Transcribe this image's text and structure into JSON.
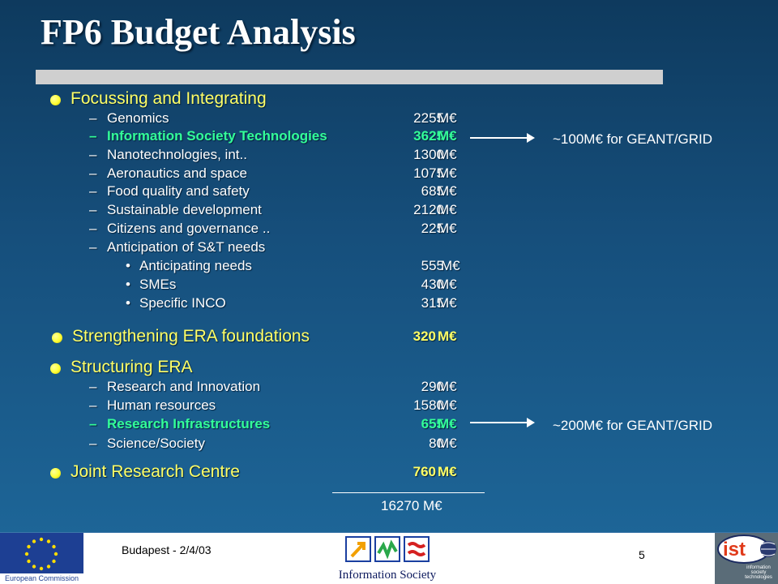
{
  "title": "FP6 Budget Analysis",
  "sections": {
    "focussing": {
      "label": "Focussing and Integrating",
      "items": [
        {
          "label": "Genomics",
          "value": "2255",
          "unit": "M€"
        },
        {
          "label": "Information Society Technologies",
          "value": "3625",
          "unit": "M€"
        },
        {
          "label": "Nanotechnologies, int..",
          "value": "1300",
          "unit": "M€"
        },
        {
          "label": "Aeronautics and space",
          "value": "1075",
          "unit": "M€"
        },
        {
          "label": "Food quality and safety",
          "value": "685",
          "unit": "M€"
        },
        {
          "label": "Sustainable development",
          "value": "2120",
          "unit": "M€"
        },
        {
          "label": "Citizens and governance ..",
          "value": "225",
          "unit": "M€"
        },
        {
          "label": "Anticipation of S&T needs"
        }
      ],
      "subitems": [
        {
          "label": "Anticipating needs",
          "value": "555",
          "unit": "M€"
        },
        {
          "label": "SMEs",
          "value": "430",
          "unit": "M€"
        },
        {
          "label": "Specific INCO",
          "value": "315",
          "unit": "M€"
        }
      ]
    },
    "strengthening": {
      "label": "Strengthening ERA foundations",
      "value": "320",
      "unit": "M€"
    },
    "structuring": {
      "label": "Structuring ERA",
      "items": [
        {
          "label": "Research and Innovation",
          "value": "290",
          "unit": "M€"
        },
        {
          "label": "Human resources",
          "value": "1580",
          "unit": "M€"
        },
        {
          "label": "Research Infrastructures",
          "value": "655",
          "unit": "M€"
        },
        {
          "label": "Science/Society",
          "value": "80",
          "unit": "M€"
        }
      ]
    },
    "jrc": {
      "label": "Joint Research Centre",
      "value": "760",
      "unit": "M€"
    }
  },
  "dash": "–",
  "bullet": "•",
  "total": "16270 M€",
  "notes": {
    "geant1": "~100M€ for GEANT/GRID",
    "geant2": "~200M€ for GEANT/GRID"
  },
  "footer": {
    "location_date": "Budapest - 2/4/03",
    "page": "5",
    "eu_caption": "European Commission",
    "is_caption": "Information Society",
    "ist_logo": "ist",
    "ist_caption": "information society technologies"
  },
  "colors": {
    "heading": "#ffff66",
    "highlight": "#33ff99",
    "text": "#ffffff",
    "title_bar": "#cfcfcf"
  }
}
